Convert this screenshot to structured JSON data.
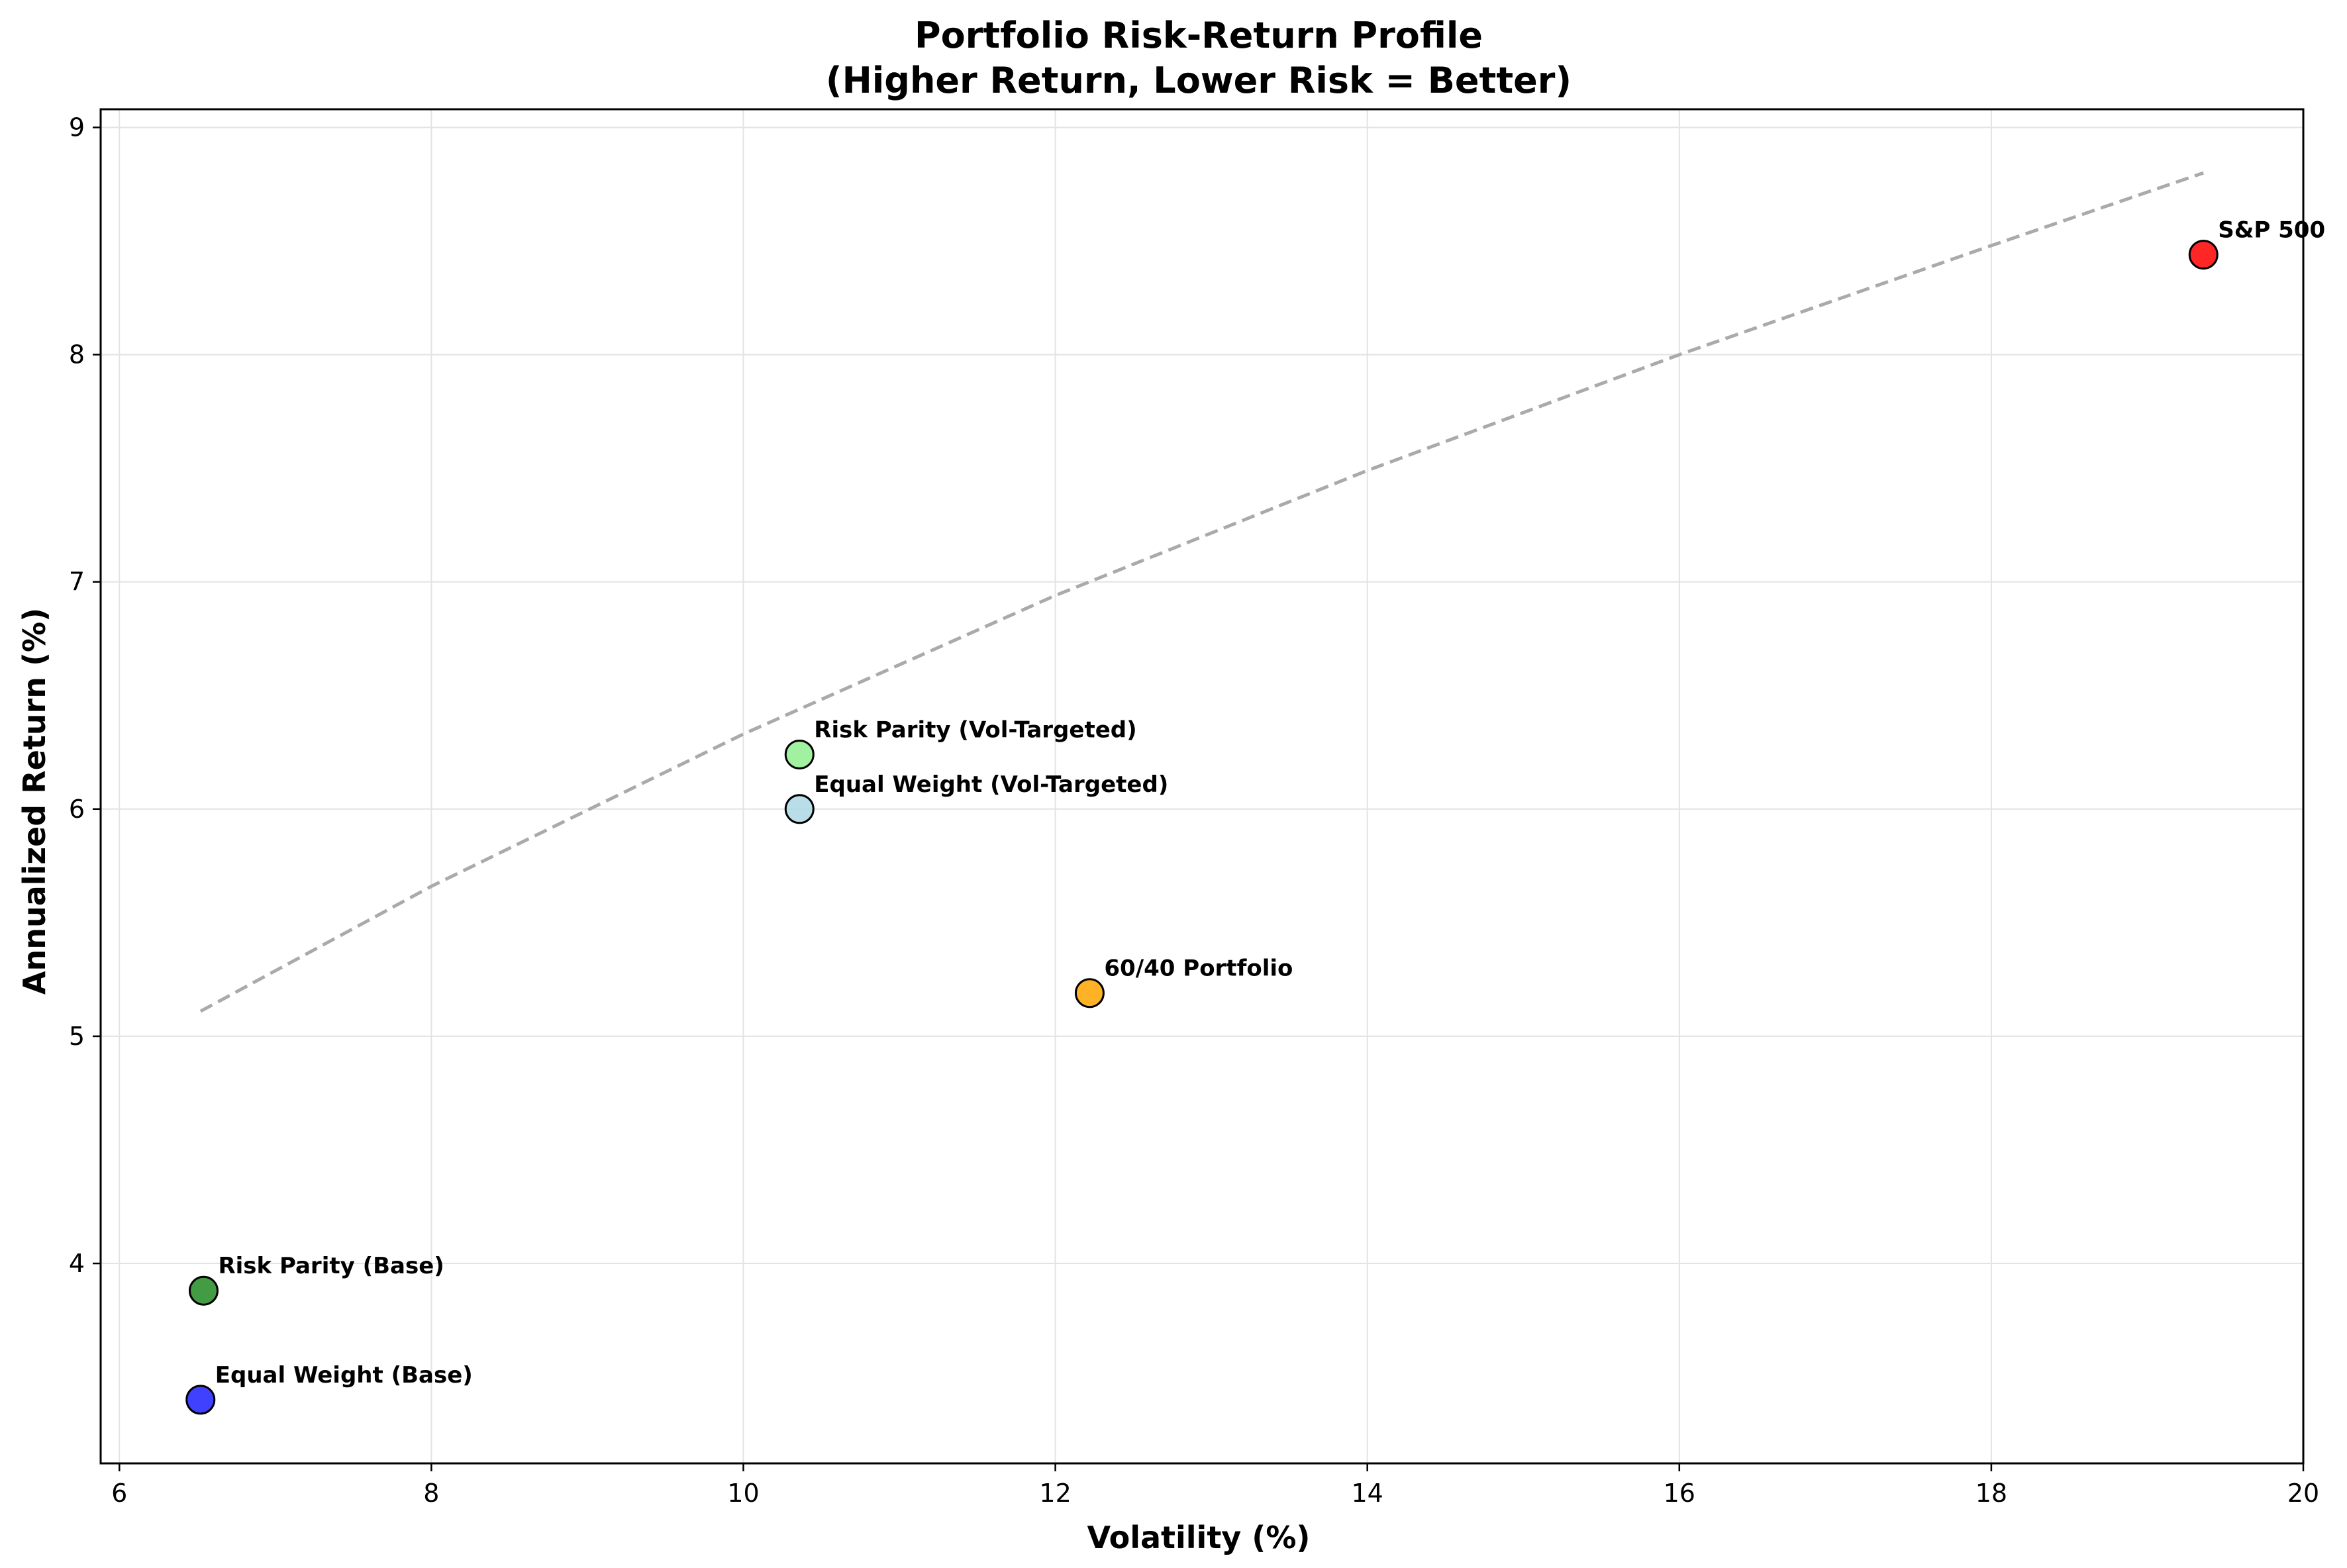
{
  "chart_data": {
    "type": "scatter",
    "title": "Portfolio Risk-Return Profile",
    "subtitle": "(Higher Return, Lower Risk = Better)",
    "xlabel": "Volatility (%)",
    "ylabel": "Annualized Return (%)",
    "xlim": [
      5.88,
      20.0
    ],
    "ylim": [
      3.12,
      9.08
    ],
    "xticks": [
      6,
      8,
      10,
      12,
      14,
      16,
      18,
      20
    ],
    "yticks": [
      4,
      5,
      6,
      7,
      8,
      9
    ],
    "grid": true,
    "points": [
      {
        "label": "Equal Weight (Base)",
        "x": 6.52,
        "y": 3.4,
        "color": "#1f1fff"
      },
      {
        "label": "Risk Parity (Base)",
        "x": 6.54,
        "y": 3.88,
        "color": "#228b22"
      },
      {
        "label": "Risk Parity (Vol-Targeted)",
        "x": 10.36,
        "y": 6.24,
        "color": "#90ee90"
      },
      {
        "label": "Equal Weight (Vol-Targeted)",
        "x": 10.36,
        "y": 6.0,
        "color": "#add8e6"
      },
      {
        "label": "60/40 Portfolio",
        "x": 12.22,
        "y": 5.19,
        "color": "#ffa500"
      },
      {
        "label": "S&P 500",
        "x": 19.36,
        "y": 8.44,
        "color": "#ff0000"
      }
    ],
    "trend_line": {
      "style": "dashed",
      "color": "#aaaaaa",
      "points": [
        [
          6.52,
          5.11
        ],
        [
          8.0,
          5.66
        ],
        [
          10.0,
          6.33
        ],
        [
          12.0,
          6.94
        ],
        [
          14.0,
          7.49
        ],
        [
          16.0,
          8.0
        ],
        [
          18.0,
          8.48
        ],
        [
          19.36,
          8.8
        ]
      ]
    }
  }
}
